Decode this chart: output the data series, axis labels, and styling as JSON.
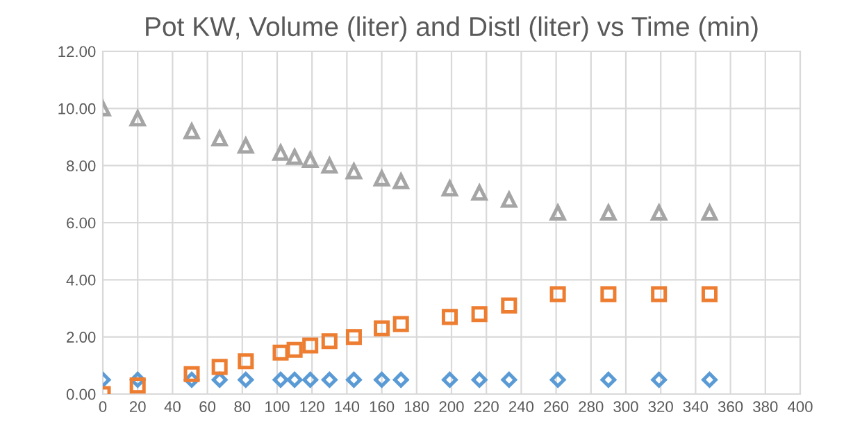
{
  "chart_data": {
    "type": "scatter",
    "title": "Pot KW, Volume (liter) and Distl (liter) vs Time (min)",
    "x": [
      0,
      20,
      51,
      67,
      82,
      102,
      110,
      119,
      130,
      144,
      160,
      171,
      199,
      216,
      233,
      261,
      290,
      319,
      348
    ],
    "series": [
      {
        "color": "#5b9bd5",
        "marker": "diamond",
        "values": [
          0.5,
          0.5,
          0.5,
          0.5,
          0.5,
          0.5,
          0.5,
          0.5,
          0.5,
          0.5,
          0.5,
          0.5,
          0.5,
          0.5,
          0.5,
          0.5,
          0.5,
          0.5,
          0.5
        ]
      },
      {
        "color": "#ed7d31",
        "marker": "square",
        "values": [
          0,
          0.3,
          0.7,
          0.95,
          1.15,
          1.45,
          1.55,
          1.7,
          1.85,
          2.0,
          2.3,
          2.45,
          2.7,
          2.8,
          3.1,
          3.5,
          3.5,
          3.5,
          3.5
        ]
      },
      {
        "color": "#a5a5a5",
        "marker": "triangle",
        "values": [
          10,
          9.65,
          9.2,
          8.95,
          8.7,
          8.45,
          8.3,
          8.2,
          8.0,
          7.8,
          7.55,
          7.45,
          7.2,
          7.05,
          6.8,
          6.35,
          6.35,
          6.35,
          6.35
        ]
      }
    ],
    "xlim": [
      0,
      400
    ],
    "xticks": [
      0,
      20,
      40,
      60,
      80,
      100,
      120,
      140,
      160,
      180,
      200,
      220,
      240,
      260,
      280,
      300,
      320,
      340,
      360,
      380,
      400
    ],
    "ylim": [
      0,
      12
    ],
    "yticks": [
      {
        "value": 0,
        "label": "0.00"
      },
      {
        "value": 2,
        "label": "2.00"
      },
      {
        "value": 4,
        "label": "4.00"
      },
      {
        "value": 6,
        "label": "6.00"
      },
      {
        "value": 8,
        "label": "8.00"
      },
      {
        "value": 10,
        "label": "10.00"
      },
      {
        "value": 12,
        "label": "12.00"
      }
    ],
    "grid": true
  }
}
